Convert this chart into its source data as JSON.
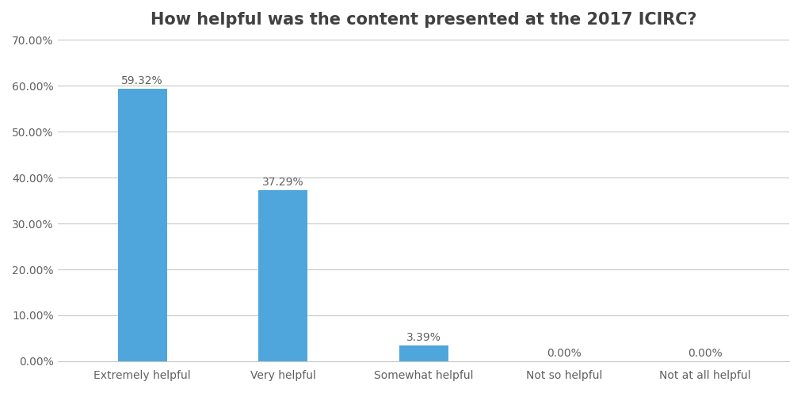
{
  "title": "How helpful was the content presented at the 2017 ICIRC?",
  "categories": [
    "Extremely helpful",
    "Very helpful",
    "Somewhat helpful",
    "Not so helpful",
    "Not at all helpful"
  ],
  "values": [
    59.32,
    37.29,
    3.39,
    0.0,
    0.0
  ],
  "labels": [
    "59.32%",
    "37.29%",
    "3.39%",
    "0.00%",
    "0.00%"
  ],
  "bar_color": "#4ea6dc",
  "background_color": "#ffffff",
  "grid_color": "#c8c8c8",
  "title_color": "#404040",
  "tick_color": "#606060",
  "label_color": "#606060",
  "ylim": [
    0,
    70
  ],
  "yticks": [
    0,
    10,
    20,
    30,
    40,
    50,
    60,
    70
  ],
  "title_fontsize": 15,
  "tick_fontsize": 10,
  "label_fontsize": 10,
  "bar_width": 0.35
}
